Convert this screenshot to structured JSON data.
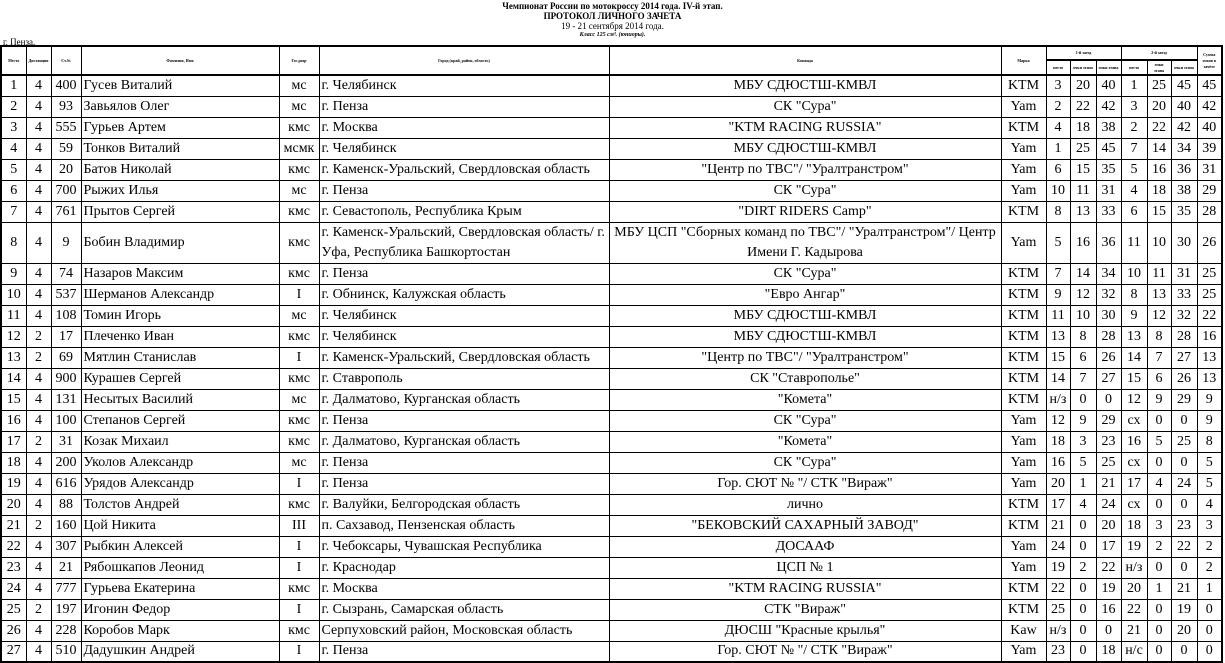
{
  "header": {
    "line1": "Чемпионат России по мотокроссу 2014 года. IV-й этап.",
    "line2": "ПРОТОКОЛ  ЛИЧНОГО  ЗАЧЕТА",
    "line3": "19 - 21 сентября 2014 года.",
    "line4": "Класс 125 см³. (юниоры).",
    "city": "г. Пенза."
  },
  "columns": {
    "place": "Место",
    "days": "Дистанция",
    "num": "Ст.№",
    "name": "Фамилия, Имя",
    "rank": "Гос.разр",
    "city": "Город (край, район, область)",
    "team": "Команда",
    "make": "Марка",
    "race1": "1-й заезд",
    "race2": "2-й заезд",
    "pos": "место",
    "pts": "очки этапа",
    "pts2": "очки этапа",
    "total": "Сумма очков в зачёте"
  },
  "rows": [
    [
      "1",
      "4",
      "400",
      "Гусев Виталий",
      "мс",
      "г. Челябинск",
      "МБУ СДЮСТШ-КМВЛ",
      "KTM",
      "3",
      "20",
      "40",
      "1",
      "25",
      "45",
      "45"
    ],
    [
      "2",
      "4",
      "93",
      "Завьялов Олег",
      "мс",
      "г. Пенза",
      "СК \"Сура\"",
      "Yam",
      "2",
      "22",
      "42",
      "3",
      "20",
      "40",
      "42"
    ],
    [
      "3",
      "4",
      "555",
      "Гурьев Артем",
      "кмс",
      "г. Москва",
      "\"KTM RACING RUSSIA\"",
      "KTM",
      "4",
      "18",
      "38",
      "2",
      "22",
      "42",
      "40"
    ],
    [
      "4",
      "4",
      "59",
      "Тонков Виталий",
      "мсмк",
      "г. Челябинск",
      "МБУ СДЮСТШ-КМВЛ",
      "Yam",
      "1",
      "25",
      "45",
      "7",
      "14",
      "34",
      "39"
    ],
    [
      "5",
      "4",
      "20",
      "Батов Николай",
      "кмс",
      "г. Каменск-Уральский, Свердловская область",
      "\"Центр по ТВС\"/ \"Уралтранстром\"",
      "Yam",
      "6",
      "15",
      "35",
      "5",
      "16",
      "36",
      "31"
    ],
    [
      "6",
      "4",
      "700",
      "Рыжих Илья",
      "мс",
      "г. Пенза",
      "СК \"Сура\"",
      "Yam",
      "10",
      "11",
      "31",
      "4",
      "18",
      "38",
      "29"
    ],
    [
      "7",
      "4",
      "761",
      "Прытов Сергей",
      "кмс",
      "г. Севастополь, Республика Крым",
      "\"DIRT RIDERS Camp\"",
      "KTM",
      "8",
      "13",
      "33",
      "6",
      "15",
      "35",
      "28"
    ],
    [
      "8",
      "4",
      "9",
      "Бобин Владимир",
      "кмс",
      "г. Каменск-Уральский, Свердловская область/ г. Уфа, Республика Башкортостан",
      "МБУ ЦСП \"Сборных команд по ТВС\"/ \"Уралтранстром\"/ Центр Имени Г. Кадырова",
      "Yam",
      "5",
      "16",
      "36",
      "11",
      "10",
      "30",
      "26"
    ],
    [
      "9",
      "4",
      "74",
      "Назаров Максим",
      "кмс",
      "г. Пенза",
      "СК \"Сура\"",
      "KTM",
      "7",
      "14",
      "34",
      "10",
      "11",
      "31",
      "25"
    ],
    [
      "10",
      "4",
      "537",
      "Шерманов Александр",
      "I",
      "г. Обнинск, Калужская область",
      "\"Евро Ангар\"",
      "KTM",
      "9",
      "12",
      "32",
      "8",
      "13",
      "33",
      "25"
    ],
    [
      "11",
      "4",
      "108",
      "Томин Игорь",
      "мс",
      "г. Челябинск",
      "МБУ СДЮСТШ-КМВЛ",
      "KTM",
      "11",
      "10",
      "30",
      "9",
      "12",
      "32",
      "22"
    ],
    [
      "12",
      "2",
      "17",
      "Плеченко Иван",
      "кмс",
      "г. Челябинск",
      "МБУ СДЮСТШ-КМВЛ",
      "KTM",
      "13",
      "8",
      "28",
      "13",
      "8",
      "28",
      "16"
    ],
    [
      "13",
      "2",
      "69",
      "Мятлин Станислав",
      "I",
      "г. Каменск-Уральский, Свердловская область",
      "\"Центр по ТВС\"/ \"Уралтранстром\"",
      "KTM",
      "15",
      "6",
      "26",
      "14",
      "7",
      "27",
      "13"
    ],
    [
      "14",
      "4",
      "900",
      "Курашев Сергей",
      "кмс",
      "г. Ставрополь",
      "СК \"Ставрополье\"",
      "KTM",
      "14",
      "7",
      "27",
      "15",
      "6",
      "26",
      "13"
    ],
    [
      "15",
      "4",
      "131",
      "Несытых Василий",
      "мс",
      "г. Далматово, Курганская область",
      "\"Комета\"",
      "KTM",
      "н/з",
      "0",
      "0",
      "12",
      "9",
      "29",
      "9"
    ],
    [
      "16",
      "4",
      "100",
      "Степанов Сергей",
      "кмс",
      "г. Пенза",
      "СК \"Сура\"",
      "Yam",
      "12",
      "9",
      "29",
      "сх",
      "0",
      "0",
      "9"
    ],
    [
      "17",
      "2",
      "31",
      "Козак Михаил",
      "кмс",
      "г. Далматово, Курганская область",
      "\"Комета\"",
      "Yam",
      "18",
      "3",
      "23",
      "16",
      "5",
      "25",
      "8"
    ],
    [
      "18",
      "4",
      "200",
      "Уколов Александр",
      "мс",
      "г. Пенза",
      "СК \"Сура\"",
      "Yam",
      "16",
      "5",
      "25",
      "сх",
      "0",
      "0",
      "5"
    ],
    [
      "19",
      "4",
      "616",
      "Урядов Александр",
      "I",
      "г. Пенза",
      "Гор. СЮТ № \"/ СТК \"Вираж\"",
      "Yam",
      "20",
      "1",
      "21",
      "17",
      "4",
      "24",
      "5"
    ],
    [
      "20",
      "4",
      "88",
      "Толстов Андрей",
      "кмс",
      "г. Валуйки, Белгородская область",
      "лично",
      "KTM",
      "17",
      "4",
      "24",
      "сх",
      "0",
      "0",
      "4"
    ],
    [
      "21",
      "2",
      "160",
      "Цой Никита",
      "III",
      "п. Сахзавод, Пензенская область",
      "\"БЕКОВСКИЙ САХАРНЫЙ ЗАВОД\"",
      "KTM",
      "21",
      "0",
      "20",
      "18",
      "3",
      "23",
      "3"
    ],
    [
      "22",
      "4",
      "307",
      "Рыбкин Алексей",
      "I",
      "г. Чебоксары, Чувашская Республика",
      "ДОСААФ",
      "Yam",
      "24",
      "0",
      "17",
      "19",
      "2",
      "22",
      "2"
    ],
    [
      "23",
      "4",
      "21",
      "Рябошкапов Леонид",
      "I",
      "г. Краснодар",
      "ЦСП № 1",
      "Yam",
      "19",
      "2",
      "22",
      "н/з",
      "0",
      "0",
      "2"
    ],
    [
      "24",
      "4",
      "777",
      "Гурьева Екатерина",
      "кмс",
      "г. Москва",
      "\"KTM RACING RUSSIA\"",
      "KTM",
      "22",
      "0",
      "19",
      "20",
      "1",
      "21",
      "1"
    ],
    [
      "25",
      "2",
      "197",
      "Игонин Федор",
      "I",
      "г. Сызрань, Самарская область",
      "СТК \"Вираж\"",
      "KTM",
      "25",
      "0",
      "16",
      "22",
      "0",
      "19",
      "0"
    ],
    [
      "26",
      "4",
      "228",
      "Коробов Марк",
      "кмс",
      "Серпуховский район, Московская область",
      "ДЮСШ \"Красные крылья\"",
      "Kaw",
      "н/з",
      "0",
      "0",
      "21",
      "0",
      "20",
      "0"
    ],
    [
      "27",
      "4",
      "510",
      "Дадушкин Андрей",
      "I",
      "г. Пенза",
      "Гор. СЮТ № \"/ СТК \"Вираж\"",
      "Yam",
      "23",
      "0",
      "18",
      "н/с",
      "0",
      "0",
      "0"
    ]
  ]
}
